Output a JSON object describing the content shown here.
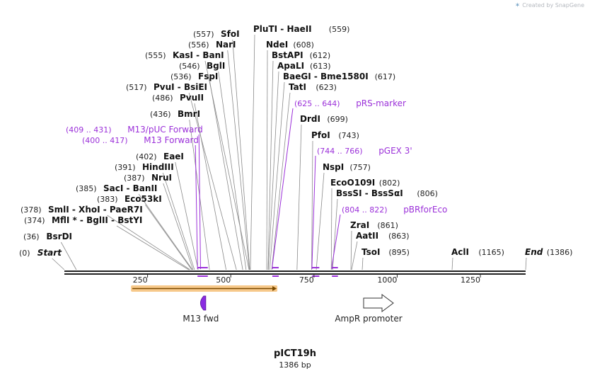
{
  "watermark": "Created by SnapGene",
  "map": {
    "name": "pICT19h",
    "length_label": "1386 bp",
    "length": 1386,
    "ruler_start": 0,
    "ruler_end": 1386,
    "ticks": [
      250,
      500,
      750,
      1000,
      1250
    ],
    "tick_labels": [
      "250",
      "500",
      "750",
      "1000",
      "1250"
    ]
  },
  "sites": [
    {
      "name": "Start",
      "pos_label": "(0)",
      "pos": 0,
      "italic": true
    },
    {
      "name": "BsrDI",
      "pos_label": "(36)",
      "pos": 36
    },
    {
      "name": "MflI * - BglII - BstYI",
      "pos_label": "(374)",
      "pos": 374
    },
    {
      "name": "SmlI - XhoI - PaeR7I",
      "pos_label": "(378)",
      "pos": 378
    },
    {
      "name": "Eco53kI",
      "pos_label": "(383)",
      "pos": 383
    },
    {
      "name": "SacI - BanII",
      "pos_label": "(385)",
      "pos": 385
    },
    {
      "name": "NruI",
      "pos_label": "(387)",
      "pos": 387
    },
    {
      "name": "HindIII",
      "pos_label": "(391)",
      "pos": 391
    },
    {
      "name": "EaeI",
      "pos_label": "(402)",
      "pos": 402
    },
    {
      "name": "BmrI",
      "pos_label": "(436)",
      "pos": 436
    },
    {
      "name": "PvuII",
      "pos_label": "(486)",
      "pos": 486
    },
    {
      "name": "PvuI - BsiEI",
      "pos_label": "(517)",
      "pos": 517
    },
    {
      "name": "FspI",
      "pos_label": "(536)",
      "pos": 536
    },
    {
      "name": "BglI",
      "pos_label": "(546)",
      "pos": 546
    },
    {
      "name": "KasI - BanI",
      "pos_label": "(555)",
      "pos": 555
    },
    {
      "name": "NarI",
      "pos_label": "(556)",
      "pos": 556
    },
    {
      "name": "SfoI",
      "pos_label": "(557)",
      "pos": 557
    },
    {
      "name": "PluTI - HaeII",
      "pos_label": "(559)",
      "pos": 559
    },
    {
      "name": "NdeI",
      "pos_label": "(608)",
      "pos": 608
    },
    {
      "name": "BstAPI",
      "pos_label": "(612)",
      "pos": 612
    },
    {
      "name": "ApaLI",
      "pos_label": "(613)",
      "pos": 613
    },
    {
      "name": "BaeGI - Bme1580I",
      "pos_label": "(617)",
      "pos": 617
    },
    {
      "name": "TatI",
      "pos_label": "(623)",
      "pos": 623
    },
    {
      "name": "DrdI",
      "pos_label": "(699)",
      "pos": 699
    },
    {
      "name": "PfoI",
      "pos_label": "(743)",
      "pos": 743
    },
    {
      "name": "NspI",
      "pos_label": "(757)",
      "pos": 757
    },
    {
      "name": "EcoO109I",
      "pos_label": "(802)",
      "pos": 802
    },
    {
      "name": "BssSI - BssSαI",
      "pos_label": "(806)",
      "pos": 806
    },
    {
      "name": "ZraI",
      "pos_label": "(861)",
      "pos": 861
    },
    {
      "name": "AatII",
      "pos_label": "(863)",
      "pos": 863
    },
    {
      "name": "TsoI",
      "pos_label": "(895)",
      "pos": 895
    },
    {
      "name": "AclI",
      "pos_label": "(1165)",
      "pos": 1165
    },
    {
      "name": "End",
      "pos_label": "(1386)",
      "pos": 1386,
      "italic": true
    }
  ],
  "primers": [
    {
      "name": "M13/pUC Forward",
      "range_label": "(409 .. 431)",
      "start": 409,
      "end": 431
    },
    {
      "name": "M13 Forward",
      "range_label": "(400 .. 417)",
      "start": 400,
      "end": 417
    },
    {
      "name": "pRS-marker",
      "range_label": "(625 .. 644)",
      "start": 625,
      "end": 644
    },
    {
      "name": "pGEX 3'",
      "range_label": "(744 .. 766)",
      "start": 744,
      "end": 766
    },
    {
      "name": "pBRforEco",
      "range_label": "(804 .. 822)",
      "start": 804,
      "end": 822
    }
  ],
  "features": [
    {
      "name": "M13 fwd",
      "type": "primer-bind",
      "pos": 410
    },
    {
      "name": "AmpR promoter",
      "type": "promoter",
      "start": 900,
      "end": 1000
    }
  ],
  "colors": {
    "enzyme_text": "#111111",
    "primer": "#9b30d9",
    "line": "#555555",
    "ruler": "#222222",
    "orf_fill": "#f7c98b",
    "orf_arrow": "#7a4a00"
  }
}
